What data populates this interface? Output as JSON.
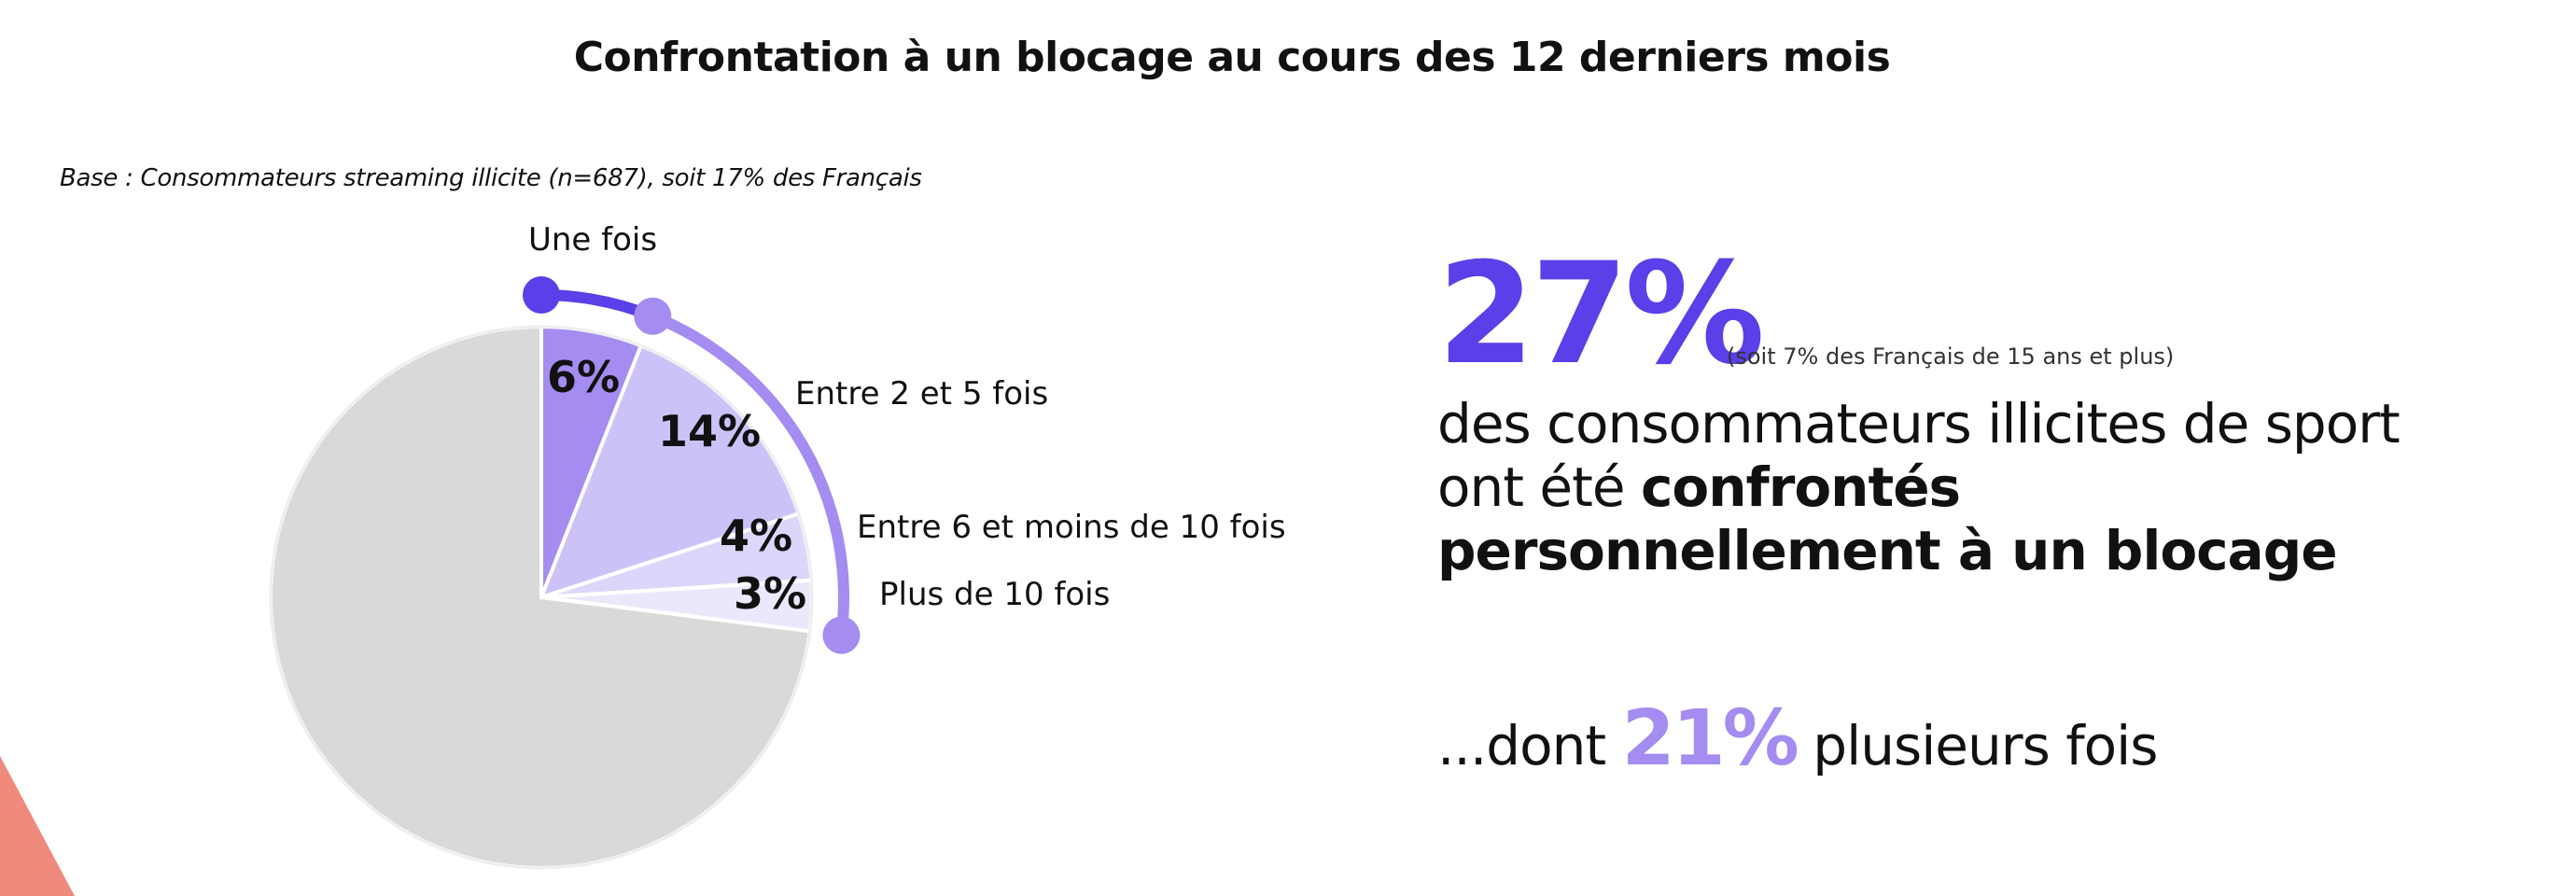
{
  "page": {
    "title": "Confrontation à un blocage au cours des 12 derniers mois",
    "base_note": "Base : Consommateurs streaming illicite  (n=687), soit 17% des Français"
  },
  "chart_data": {
    "type": "pie",
    "title": "Confrontation à un blocage au cours des 12 derniers mois",
    "slices": [
      {
        "name": "Une fois",
        "value": 6,
        "label": "6%",
        "color": "#a48cf0"
      },
      {
        "name": "Entre 2 et 5 fois",
        "value": 14,
        "label": "14%",
        "color": "#cdc2f8"
      },
      {
        "name": "Entre 6 et moins de 10 fois",
        "value": 4,
        "label": "4%",
        "color": "#ddd6fa"
      },
      {
        "name": "Plus de 10 fois",
        "value": 3,
        "label": "3%",
        "color": "#ece8fc"
      },
      {
        "name": "",
        "value": 73,
        "label": "",
        "color": "#d9d9d9"
      }
    ],
    "arc_bracket": {
      "from_value": 0,
      "split_value": 6,
      "to_value": 27,
      "color_first": "#5b3fe8",
      "color_rest": "#a48cf0"
    }
  },
  "callout": {
    "big_pct": "27%",
    "big_note": "(soit 7% des Français de 15 ans et plus)",
    "line_regular": "des consommateurs illicites de sport ont été",
    "line_bold": "confrontés personnellement à un blocage",
    "second_prefix": "...dont",
    "second_pct": "21%",
    "second_suffix": "plusieurs fois"
  },
  "colors": {
    "accent": "#5b3fe8",
    "accent_light": "#a48cf0",
    "corner": "#f08a7c",
    "pie_rest": "#d9d9d9"
  }
}
